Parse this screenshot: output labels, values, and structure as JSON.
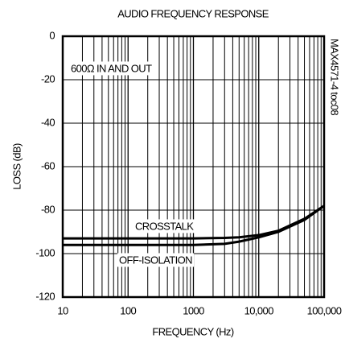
{
  "chart_data": {
    "type": "line",
    "title": "AUDIO FREQUENCY RESPONSE",
    "xlabel": "FREQUENCY (Hz)",
    "ylabel": "LOSS (dB)",
    "annotations": [
      "600Ω IN AND OUT",
      "CROSSTALK",
      "OFF-ISOLATION",
      "MAX4571-4 toc08"
    ],
    "x": [
      10,
      100,
      1000,
      3000,
      5000,
      10000,
      20000,
      50000,
      100000
    ],
    "series": [
      {
        "name": "CROSSTALK",
        "color": "#000000",
        "values": [
          -93,
          -93,
          -93,
          -92.8,
          -92.5,
          -91.5,
          -89.5,
          -84,
          -78
        ]
      },
      {
        "name": "OFF-ISOLATION",
        "color": "#000000",
        "values": [
          -96,
          -96,
          -96,
          -95.5,
          -94.5,
          -92.5,
          -90,
          -84.5,
          -78
        ]
      }
    ],
    "xlog": true,
    "xlim": [
      10,
      100000
    ],
    "xticks": [
      10,
      100,
      1000,
      {
        "value": 10000,
        "label": "10,000"
      },
      {
        "value": 100000,
        "label": "100,000"
      }
    ],
    "ylim": [
      -120,
      0
    ],
    "yticks": [
      -120,
      -100,
      -80,
      -60,
      -40,
      -20,
      0
    ],
    "grid": true
  }
}
